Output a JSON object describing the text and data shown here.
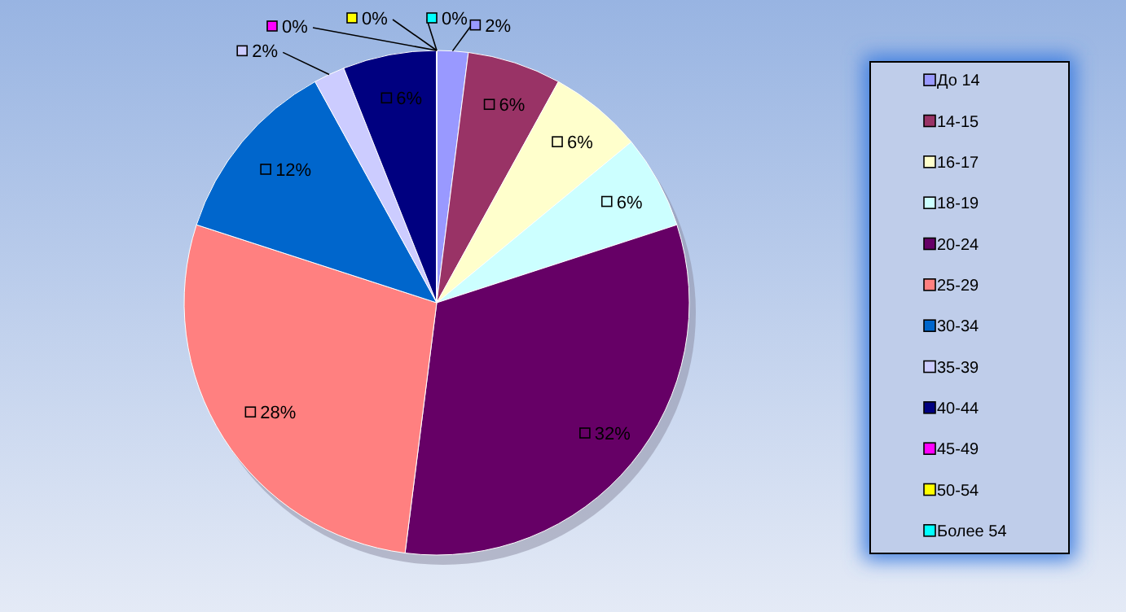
{
  "chart_data": {
    "type": "pie",
    "categories": [
      "До 14",
      "14-15",
      "16-17",
      "18-19",
      "20-24",
      "25-29",
      "30-34",
      "35-39",
      "40-44",
      "45-49",
      "50-54",
      "Более 54"
    ],
    "values": [
      2,
      6,
      6,
      6,
      32,
      28,
      12,
      2,
      6,
      0,
      0,
      0
    ],
    "colors": [
      "#9999ff",
      "#993366",
      "#ffffcc",
      "#ccffff",
      "#660066",
      "#ff8080",
      "#0066cc",
      "#ccccff",
      "#000080",
      "#ff00ff",
      "#ffff00",
      "#00ffff"
    ],
    "value_labels": [
      "2%",
      "6%",
      "6%",
      "6%",
      "32%",
      "28%",
      "12%",
      "2%",
      "6%",
      "0%",
      "0%",
      "0%"
    ],
    "legend": "right"
  }
}
